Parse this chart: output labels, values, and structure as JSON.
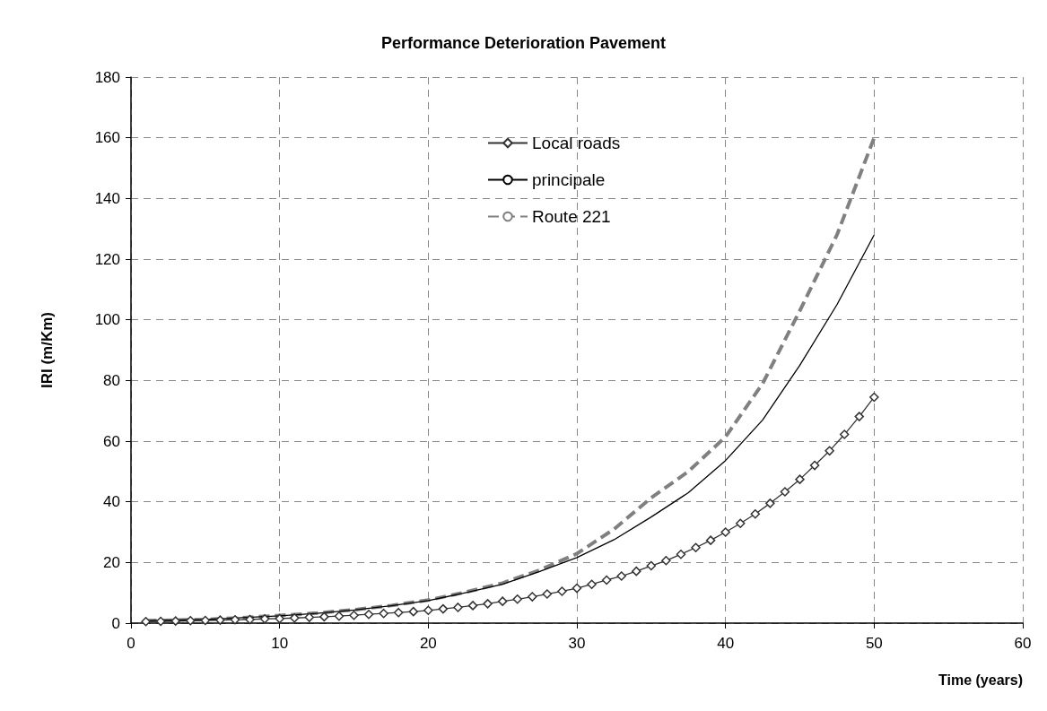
{
  "chart_data": {
    "type": "line",
    "title": "Performance Deterioration Pavement",
    "xlabel": "Time (years)",
    "ylabel": "IRI (m/Km)",
    "xlim": [
      0,
      60
    ],
    "xticks": [
      0,
      10,
      20,
      30,
      40,
      50,
      60
    ],
    "ylim": [
      0,
      180
    ],
    "yticks": [
      0,
      20,
      40,
      60,
      80,
      100,
      120,
      140,
      160,
      180
    ],
    "grid": true,
    "legend": "top",
    "marker": "none",
    "line_style": "solid",
    "series": [
      {
        "name": "Local roads",
        "color": "#333333",
        "marker": "diamond",
        "x": [
          1,
          2,
          3,
          4,
          5,
          6,
          7,
          8,
          9,
          10,
          11,
          12,
          13,
          14,
          15,
          16,
          17,
          18,
          19,
          20,
          21,
          22,
          23,
          24,
          25,
          26,
          27,
          28,
          29,
          30,
          31,
          32,
          33,
          34,
          35,
          36,
          37,
          38,
          39,
          40,
          41,
          42,
          43,
          44,
          45,
          46,
          47,
          48,
          49,
          50
        ],
        "values": [
          0.5,
          0.6,
          0.7,
          0.8,
          0.9,
          1.0,
          1.1,
          1.2,
          1.4,
          1.5,
          1.7,
          1.9,
          2.1,
          2.3,
          2.6,
          2.9,
          3.2,
          3.5,
          3.8,
          4.2,
          4.7,
          5.2,
          5.8,
          6.4,
          7.2,
          7.9,
          8.7,
          9.6,
          10.5,
          11.5,
          12.8,
          14.2,
          15.5,
          17.1,
          18.9,
          20.6,
          22.7,
          24.9,
          27.3,
          30,
          32.9,
          36,
          39.5,
          43.3,
          47.4,
          52,
          56.8,
          62.2,
          68.1,
          74.5
        ]
      },
      {
        "name": "principale",
        "color": "#000000",
        "x": [
          1,
          5,
          7.5,
          10,
          12.5,
          15,
          17.5,
          20,
          22.5,
          25,
          27.5,
          30,
          32.5,
          35,
          37.5,
          40,
          42.5,
          45,
          47.5,
          50
        ],
        "values": [
          0.8,
          1.2,
          1.8,
          2.4,
          3.2,
          4.3,
          5.7,
          7.4,
          10,
          12.8,
          17,
          21.6,
          27.5,
          35,
          43,
          53.6,
          67,
          85,
          105,
          128
        ]
      },
      {
        "name": "Route 221",
        "color": "#808080",
        "line_style": "dashed",
        "x": [
          1,
          5,
          7.5,
          10,
          12.5,
          15,
          17.5,
          20,
          22.5,
          25,
          27.5,
          30,
          32.5,
          35,
          37.5,
          40,
          42.5,
          45,
          47.5,
          50
        ],
        "values": [
          0.8,
          1.2,
          1.8,
          2.5,
          3.3,
          4.4,
          5.8,
          7.6,
          10.2,
          13.2,
          17.5,
          22.9,
          31,
          41.3,
          50,
          61.4,
          79,
          103,
          128,
          160
        ]
      }
    ]
  }
}
